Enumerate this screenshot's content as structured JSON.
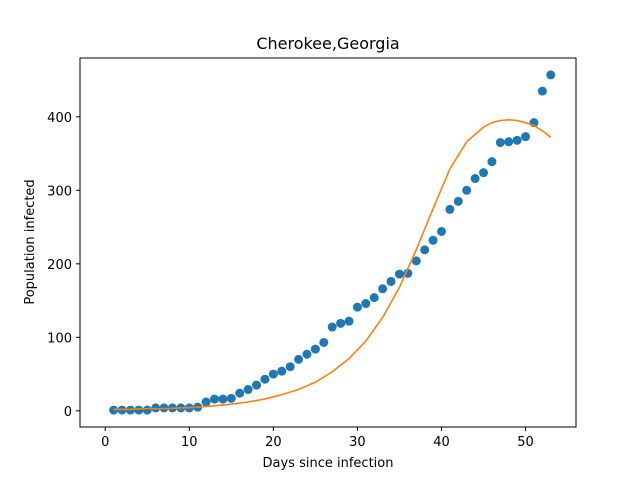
{
  "chart_data": {
    "type": "scatter",
    "title": "Cherokee,Georgia",
    "xlabel": "Days since infection",
    "ylabel": "Population infected",
    "xlim": [
      -3,
      56
    ],
    "ylim": [
      -22,
      480
    ],
    "xticks": [
      0,
      10,
      20,
      30,
      40,
      50
    ],
    "yticks": [
      0,
      100,
      200,
      300,
      400
    ],
    "grid": false,
    "series": [
      {
        "kind": "scatter",
        "color": "#1f77b4",
        "x": [
          1,
          2,
          3,
          4,
          5,
          6,
          7,
          8,
          9,
          10,
          11,
          12,
          13,
          14,
          15,
          16,
          17,
          18,
          19,
          20,
          21,
          22,
          23,
          24,
          25,
          26,
          27,
          28,
          29,
          30,
          31,
          32,
          33,
          34,
          35,
          36,
          37,
          38,
          39,
          40,
          41,
          42,
          43,
          44,
          45,
          46,
          47,
          48,
          49,
          50,
          51,
          52,
          53
        ],
        "y": [
          1,
          1,
          1,
          1,
          1,
          4,
          4,
          4,
          4,
          4,
          5,
          12,
          16,
          16,
          17,
          24,
          29,
          35,
          43,
          50,
          54,
          60,
          70,
          77,
          84,
          93,
          114,
          119,
          122,
          141,
          146,
          154,
          166,
          176,
          186,
          187,
          204,
          219,
          232,
          244,
          274,
          285,
          300,
          316,
          324,
          339,
          365,
          366,
          368,
          373,
          392,
          435,
          457
        ]
      },
      {
        "kind": "line",
        "color": "#ff7f0e",
        "x": [
          1,
          3,
          5,
          7,
          9,
          11,
          13,
          15,
          17,
          19,
          21,
          23,
          25,
          27,
          29,
          31,
          33,
          35,
          37,
          39,
          41,
          43,
          45,
          46,
          47,
          48,
          49,
          50,
          51,
          52,
          53
        ],
        "y": [
          2,
          2,
          3,
          3,
          4,
          5,
          7,
          9,
          12,
          16,
          22,
          29,
          39,
          53,
          71,
          95,
          127,
          168,
          219,
          275,
          329,
          366,
          386,
          392,
          395,
          396,
          395,
          392,
          388,
          381,
          372
        ]
      }
    ]
  }
}
